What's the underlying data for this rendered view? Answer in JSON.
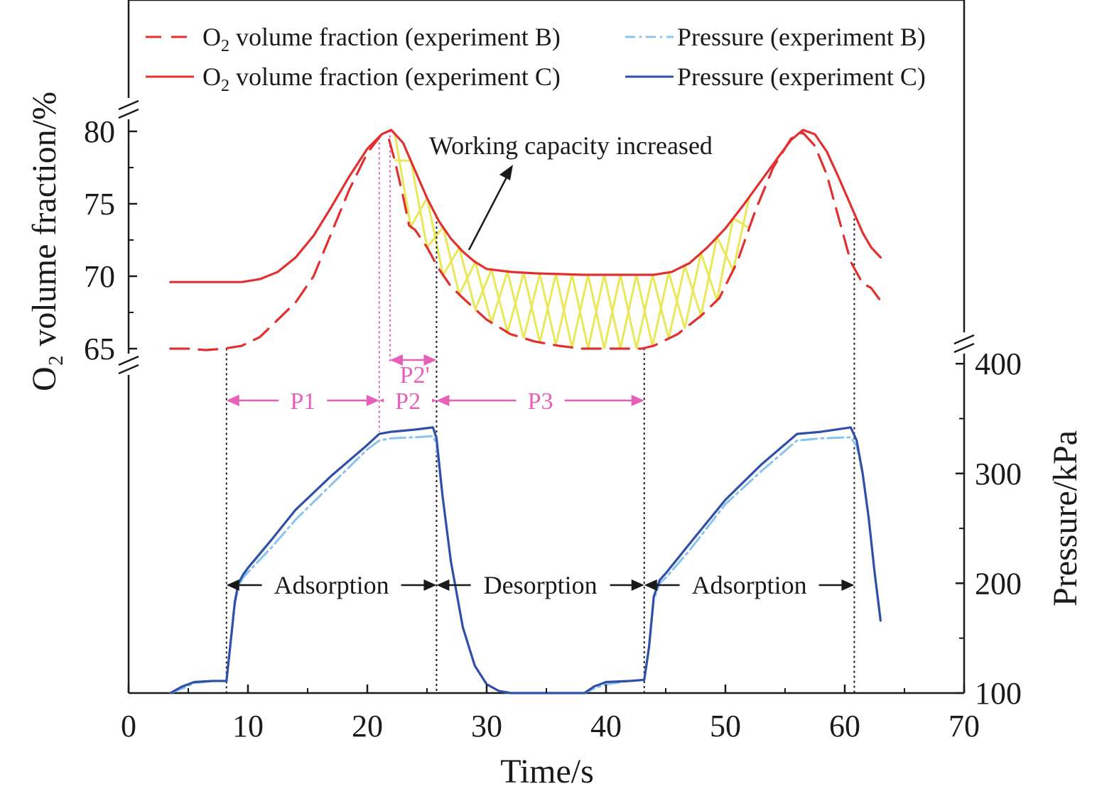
{
  "chart_data": {
    "type": "line",
    "x_axis": {
      "label": "Time/s",
      "range": [
        0,
        70
      ],
      "ticks": [
        0,
        10,
        20,
        30,
        40,
        50,
        60,
        70
      ]
    },
    "y_axis_left": {
      "label": "O₂ volume fraction/%",
      "range": [
        63.5,
        81.5
      ],
      "ticks": [
        65,
        70,
        75,
        80
      ],
      "broken": true
    },
    "y_axis_right": {
      "label": "Pressure/kPa",
      "range": [
        100,
        400
      ],
      "ticks": [
        100,
        200,
        300,
        400
      ],
      "broken": true
    },
    "legend": {
      "placement": "top",
      "items": [
        {
          "label_main": "O",
          "label_sub": "2",
          "label_rest": " volume fraction (experiment B)",
          "series": "o2_b"
        },
        {
          "label_main": "Pressure (experiment B)",
          "label_sub": "",
          "label_rest": "",
          "series": "p_b"
        },
        {
          "label_main": "O",
          "label_sub": "2",
          "label_rest": " volume fraction (experiment C)",
          "series": "o2_c"
        },
        {
          "label_main": "Pressure (experiment C)",
          "label_sub": "",
          "label_rest": "",
          "series": "p_c"
        }
      ]
    },
    "series": [
      {
        "id": "o2_b",
        "name": "O₂ volume fraction (experiment B)",
        "axis": "left",
        "color": "#e03030",
        "style": "dashed",
        "x": [
          3.5,
          5,
          6.5,
          8,
          9.5,
          11,
          12.5,
          14,
          15.5,
          17,
          18.5,
          20,
          21.2,
          21.8,
          22.3,
          23,
          23.5,
          24,
          25,
          26,
          27,
          28,
          30,
          32,
          34,
          36,
          38,
          40,
          42,
          43,
          44,
          46,
          48,
          49.5,
          51,
          52.5,
          54,
          55.5,
          56.5,
          57.5,
          58.5,
          59.5,
          60.5,
          61.5,
          62.2,
          63
        ],
        "y": [
          65.0,
          65.0,
          64.9,
          65.0,
          65.2,
          65.8,
          67.0,
          68.2,
          70.0,
          73.0,
          76.0,
          78.5,
          79.8,
          79.5,
          78.0,
          75.5,
          73.5,
          73.2,
          72.0,
          70.5,
          69.3,
          68.5,
          67.0,
          66.0,
          65.5,
          65.2,
          65.0,
          65.0,
          65.0,
          65.0,
          65.2,
          66.0,
          67.3,
          68.5,
          71.0,
          74.5,
          77.5,
          79.5,
          79.9,
          79.0,
          77.0,
          74.0,
          71.0,
          69.5,
          69.2,
          68.3
        ]
      },
      {
        "id": "o2_c",
        "name": "O₂ volume fraction (experiment C)",
        "axis": "left",
        "color": "#e03030",
        "style": "solid",
        "x": [
          3.5,
          5,
          6.5,
          8,
          9.5,
          11,
          12.5,
          14,
          15.5,
          17,
          18.5,
          20,
          21.2,
          22,
          23,
          24,
          25,
          26,
          27,
          28,
          29,
          30,
          32,
          34,
          36,
          38,
          40,
          42,
          44,
          45.5,
          47,
          48.5,
          50,
          51.5,
          53,
          54.5,
          55.5,
          56.5,
          57.5,
          58.5,
          59.5,
          60.5,
          61.5,
          62.2,
          63
        ],
        "y": [
          69.6,
          69.6,
          69.6,
          69.6,
          69.6,
          69.8,
          70.3,
          71.3,
          72.8,
          74.8,
          76.9,
          78.8,
          79.8,
          80.1,
          79.2,
          77.3,
          75.4,
          73.8,
          72.6,
          71.7,
          71.0,
          70.5,
          70.3,
          70.2,
          70.15,
          70.1,
          70.1,
          70.1,
          70.1,
          70.3,
          70.9,
          72.0,
          73.3,
          74.9,
          76.6,
          78.3,
          79.4,
          80.1,
          79.8,
          78.6,
          76.8,
          74.9,
          73.0,
          72.0,
          71.3
        ]
      },
      {
        "id": "p_b",
        "name": "Pressure (experiment B)",
        "axis": "right",
        "color": "#88c4ec",
        "style": "dashdot",
        "x": [
          3.5,
          4.5,
          5.5,
          7,
          8.2,
          8.6,
          8.9,
          9.2,
          9.6,
          10,
          12,
          14,
          17,
          20,
          21,
          22,
          24,
          25.5,
          25.8,
          26.3,
          27,
          28,
          29,
          30,
          31,
          32,
          34,
          36,
          38.2,
          39,
          40,
          42,
          43.2,
          43.6,
          44,
          44.5,
          45,
          47,
          50,
          53,
          56,
          58,
          60.5,
          61,
          61.5,
          62,
          62.5,
          63
        ],
        "y": [
          100,
          104,
          109,
          111,
          111,
          150,
          180,
          198,
          205,
          210,
          233,
          258,
          290,
          322,
          330,
          332,
          333,
          334,
          326,
          280,
          220,
          160,
          125,
          108,
          102,
          100,
          100,
          100,
          100,
          104,
          108,
          111,
          112,
          140,
          185,
          200,
          205,
          230,
          272,
          302,
          330,
          332,
          333,
          325,
          300,
          260,
          210,
          168
        ]
      },
      {
        "id": "p_c",
        "name": "Pressure (experiment C)",
        "axis": "right",
        "color": "#2f4fa8",
        "style": "solid",
        "x": [
          3.5,
          4.5,
          5.5,
          7,
          8.2,
          8.6,
          8.9,
          9.2,
          9.6,
          10,
          12,
          14,
          17,
          20,
          21,
          22,
          24,
          25.5,
          25.8,
          26.3,
          27,
          28,
          29,
          30,
          31,
          32,
          34,
          36,
          38.2,
          39,
          40,
          42,
          43.2,
          43.6,
          44,
          44.5,
          45,
          47,
          50,
          53,
          56,
          58,
          60.5,
          61,
          61.5,
          62,
          62.5,
          63
        ],
        "y": [
          100,
          106,
          110,
          111,
          111,
          152,
          183,
          200,
          208,
          214,
          240,
          267,
          298,
          326,
          336,
          338,
          340,
          342,
          332,
          280,
          220,
          160,
          125,
          108,
          102,
          100,
          100,
          100,
          100,
          106,
          110,
          111,
          112,
          142,
          188,
          203,
          209,
          236,
          276,
          308,
          336,
          338,
          342,
          330,
          300,
          260,
          210,
          166
        ]
      }
    ],
    "vertical_lines": [
      {
        "x": 8.2,
        "style": "dotted-black"
      },
      {
        "x": 25.8,
        "style": "dotted-black"
      },
      {
        "x": 43.2,
        "style": "dotted-black"
      },
      {
        "x": 60.8,
        "style": "dotted-black"
      },
      {
        "x": 21.0,
        "style": "dotted-pink"
      },
      {
        "x": 21.9,
        "style": "dotted-pink"
      }
    ],
    "phase_labels": [
      {
        "text": "P1",
        "x_from": 8.2,
        "x_to": 21.0
      },
      {
        "text": "P2",
        "x_from": 21.0,
        "x_to": 25.8
      },
      {
        "text": "P2'",
        "x_from": 21.9,
        "x_to": 25.8
      },
      {
        "text": "P3",
        "x_from": 25.8,
        "x_to": 43.2
      }
    ],
    "process_labels": [
      {
        "text": "Adsorption",
        "x_from": 8.2,
        "x_to": 25.8
      },
      {
        "text": "Desorption",
        "x_from": 25.8,
        "x_to": 43.2
      },
      {
        "text": "Adsorption",
        "x_from": 43.2,
        "x_to": 60.8
      }
    ],
    "annotation": {
      "text": "Working capacity increased"
    },
    "hatch": {
      "color": "#e8e85a",
      "x_range": [
        22.3,
        53.2
      ],
      "between": [
        "o2_b",
        "o2_c"
      ]
    }
  }
}
